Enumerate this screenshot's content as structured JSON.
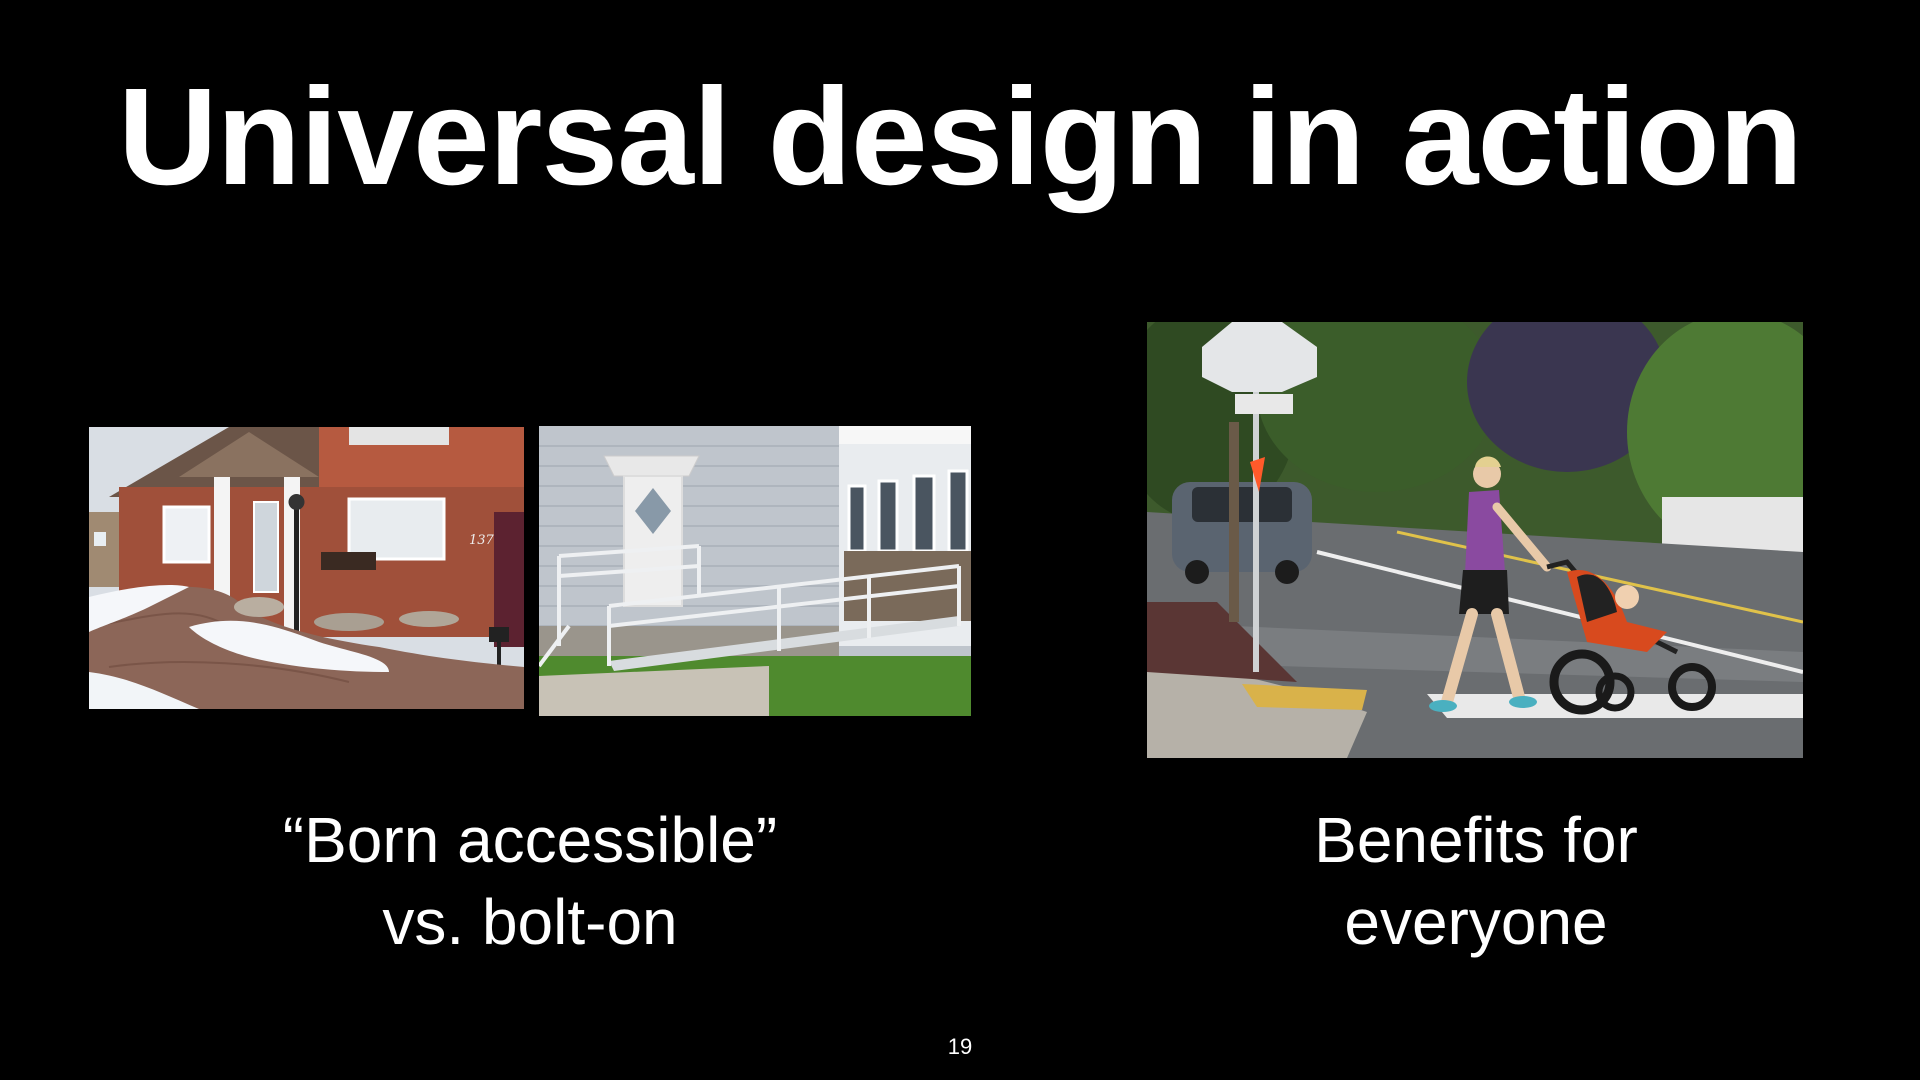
{
  "slide": {
    "title": "Universal design in action",
    "caption_left": {
      "line1": "“Born accessible”",
      "line2": "vs. bolt-on"
    },
    "caption_right": {
      "line1": "Benefits for",
      "line2": "everyone"
    },
    "page_number": "19",
    "house_number": "137"
  },
  "colors": {
    "background": "#000000",
    "text": "#ffffff"
  }
}
